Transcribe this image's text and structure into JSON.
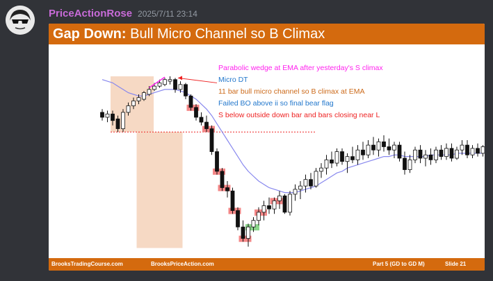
{
  "message": {
    "username": "PriceActionRose",
    "timestamp": "2025/7/11 23:14"
  },
  "slide": {
    "title_bold": "Gap Down:",
    "title_rest": " Bull Micro Channel so B Climax",
    "annotations": [
      {
        "text": "Parabolic wedge at EMA after yesterday's S climax",
        "color": "#ff22ee"
      },
      {
        "text": "Micro DT",
        "color": "#2277cc"
      },
      {
        "text": "11 bar bull micro channel so B climax at EMA",
        "color": "#cc6a1a"
      },
      {
        "text": "Failed BO above ii so final bear flag",
        "color": "#2277cc"
      },
      {
        "text": "S below outside down bar and bars closing near L",
        "color": "#ee2222"
      }
    ],
    "footer": {
      "left": "BrooksTradingCourse.com",
      "center": "BrooksPriceAction.com",
      "part": "Part 5 (GD to GD M)",
      "slide": "Slide  21"
    }
  },
  "chart_data": {
    "type": "candlestick",
    "ema_color": "#8888ee",
    "bars": [
      [
        0,
        0.78,
        0.8,
        0.73,
        0.75
      ],
      [
        1,
        0.75,
        0.79,
        0.72,
        0.77
      ],
      [
        2,
        0.77,
        0.79,
        0.7,
        0.73
      ],
      [
        3,
        0.74,
        0.76,
        0.66,
        0.68
      ],
      [
        4,
        0.68,
        0.8,
        0.66,
        0.78
      ],
      [
        5,
        0.78,
        0.84,
        0.76,
        0.82
      ],
      [
        6,
        0.82,
        0.87,
        0.8,
        0.85
      ],
      [
        7,
        0.85,
        0.89,
        0.83,
        0.87
      ],
      [
        8,
        0.86,
        0.91,
        0.85,
        0.9
      ],
      [
        9,
        0.89,
        0.94,
        0.88,
        0.92
      ],
      [
        10,
        0.92,
        0.96,
        0.91,
        0.94
      ],
      [
        11,
        0.94,
        0.98,
        0.93,
        0.96
      ],
      [
        12,
        0.95,
        0.99,
        0.94,
        0.98
      ],
      [
        13,
        0.97,
        1.0,
        0.95,
        0.98
      ],
      [
        14,
        0.98,
        0.99,
        0.9,
        0.92
      ],
      [
        15,
        0.92,
        0.97,
        0.9,
        0.95
      ],
      [
        16,
        0.95,
        0.96,
        0.86,
        0.88
      ],
      [
        17,
        0.88,
        0.89,
        0.79,
        0.81
      ],
      [
        18,
        0.81,
        0.83,
        0.73,
        0.75
      ],
      [
        19,
        0.75,
        0.78,
        0.7,
        0.72
      ],
      [
        20,
        0.72,
        0.76,
        0.66,
        0.68
      ],
      [
        21,
        0.68,
        0.7,
        0.52,
        0.54
      ],
      [
        22,
        0.54,
        0.56,
        0.4,
        0.42
      ],
      [
        23,
        0.42,
        0.44,
        0.3,
        0.32
      ],
      [
        24,
        0.32,
        0.36,
        0.26,
        0.3
      ],
      [
        25,
        0.3,
        0.32,
        0.16,
        0.18
      ],
      [
        26,
        0.18,
        0.2,
        0.06,
        0.08
      ],
      [
        27,
        0.08,
        0.12,
        -0.01,
        0.01
      ],
      [
        28,
        0.01,
        0.1,
        -0.04,
        0.08
      ],
      [
        29,
        0.08,
        0.14,
        0.05,
        0.12
      ],
      [
        30,
        0.12,
        0.2,
        0.09,
        0.17
      ],
      [
        31,
        0.17,
        0.24,
        0.12,
        0.21
      ],
      [
        32,
        0.21,
        0.26,
        0.16,
        0.19
      ],
      [
        33,
        0.19,
        0.26,
        0.16,
        0.24
      ],
      [
        34,
        0.24,
        0.3,
        0.19,
        0.27
      ],
      [
        35,
        0.27,
        0.28,
        0.16,
        0.17
      ],
      [
        36,
        0.17,
        0.3,
        0.15,
        0.28
      ],
      [
        37,
        0.28,
        0.34,
        0.24,
        0.31
      ],
      [
        38,
        0.31,
        0.36,
        0.25,
        0.33
      ],
      [
        39,
        0.33,
        0.4,
        0.29,
        0.37
      ],
      [
        40,
        0.37,
        0.41,
        0.31,
        0.33
      ],
      [
        41,
        0.33,
        0.44,
        0.32,
        0.42
      ],
      [
        42,
        0.42,
        0.47,
        0.38,
        0.44
      ],
      [
        43,
        0.44,
        0.52,
        0.4,
        0.49
      ],
      [
        44,
        0.49,
        0.54,
        0.44,
        0.47
      ],
      [
        45,
        0.47,
        0.56,
        0.45,
        0.54
      ],
      [
        46,
        0.54,
        0.56,
        0.46,
        0.48
      ],
      [
        47,
        0.48,
        0.53,
        0.41,
        0.51
      ],
      [
        48,
        0.51,
        0.57,
        0.47,
        0.49
      ],
      [
        49,
        0.49,
        0.58,
        0.46,
        0.55
      ],
      [
        50,
        0.55,
        0.6,
        0.49,
        0.52
      ],
      [
        51,
        0.52,
        0.61,
        0.5,
        0.58
      ],
      [
        52,
        0.58,
        0.63,
        0.52,
        0.55
      ],
      [
        53,
        0.55,
        0.62,
        0.51,
        0.6
      ],
      [
        54,
        0.6,
        0.64,
        0.54,
        0.57
      ],
      [
        55,
        0.57,
        0.62,
        0.52,
        0.55
      ],
      [
        56,
        0.55,
        0.6,
        0.5,
        0.58
      ],
      [
        57,
        0.58,
        0.6,
        0.48,
        0.5
      ],
      [
        58,
        0.5,
        0.54,
        0.4,
        0.43
      ],
      [
        59,
        0.43,
        0.52,
        0.41,
        0.49
      ],
      [
        60,
        0.49,
        0.57,
        0.47,
        0.55
      ],
      [
        61,
        0.55,
        0.58,
        0.47,
        0.5
      ],
      [
        62,
        0.5,
        0.55,
        0.45,
        0.52
      ],
      [
        63,
        0.52,
        0.56,
        0.46,
        0.49
      ],
      [
        64,
        0.49,
        0.57,
        0.47,
        0.55
      ],
      [
        65,
        0.55,
        0.58,
        0.49,
        0.51
      ],
      [
        66,
        0.51,
        0.59,
        0.49,
        0.56
      ],
      [
        67,
        0.56,
        0.59,
        0.48,
        0.5
      ],
      [
        68,
        0.5,
        0.57,
        0.49,
        0.55
      ],
      [
        69,
        0.55,
        0.61,
        0.52,
        0.58
      ],
      [
        70,
        0.58,
        0.61,
        0.5,
        0.52
      ],
      [
        71,
        0.52,
        0.58,
        0.5,
        0.56
      ],
      [
        72,
        0.56,
        0.59,
        0.51,
        0.53
      ],
      [
        73,
        0.53,
        0.58,
        0.51,
        0.57
      ]
    ],
    "ema": [
      0.98,
      0.97,
      0.96,
      0.94,
      0.92,
      0.9,
      0.89,
      0.88,
      0.88,
      0.89,
      0.9,
      0.91,
      0.92,
      0.92,
      0.92,
      0.91,
      0.9,
      0.88,
      0.86,
      0.83,
      0.8,
      0.76,
      0.71,
      0.66,
      0.61,
      0.56,
      0.51,
      0.46,
      0.42,
      0.39,
      0.36,
      0.34,
      0.32,
      0.31,
      0.3,
      0.29,
      0.29,
      0.29,
      0.3,
      0.31,
      0.32,
      0.33,
      0.35,
      0.37,
      0.39,
      0.41,
      0.42,
      0.44,
      0.45,
      0.46,
      0.47,
      0.48,
      0.49,
      0.5,
      0.51,
      0.51,
      0.52,
      0.52,
      0.51,
      0.51,
      0.51,
      0.51,
      0.51,
      0.52,
      0.52,
      0.52,
      0.52,
      0.52,
      0.53,
      0.53,
      0.53,
      0.53,
      0.53,
      0.53
    ],
    "sell_bars": [
      17,
      20,
      22,
      23,
      25,
      27,
      30,
      33
    ],
    "buy_bars": [
      28
    ]
  }
}
